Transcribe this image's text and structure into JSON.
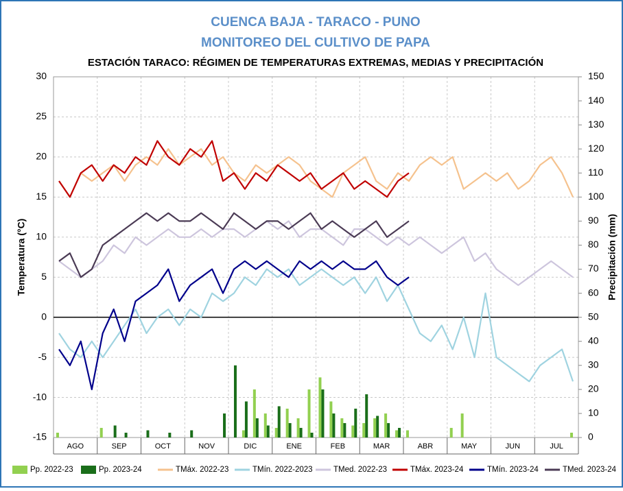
{
  "chart_data": {
    "type": "combo",
    "title": "CUENCA BAJA - TARACO - PUNO",
    "subtitle": "MONITOREO DEL CULTIVO DE PAPA",
    "heading": "ESTACIÓN TARACO: RÉGIMEN DE TEMPERATURAS EXTREMAS, MEDIAS Y PRECIPITACIÓN",
    "ylabel": "Temperatura (°C)",
    "y2label": "Precipitación (mm)",
    "categories": [
      null,
      "AGO",
      null,
      null,
      null,
      "SEP",
      null,
      null,
      null,
      "OCT",
      null,
      null,
      null,
      "NOV",
      null,
      null,
      null,
      "DIC",
      null,
      null,
      null,
      "ENE",
      null,
      null,
      null,
      "FEB",
      null,
      null,
      null,
      "MAR",
      null,
      null,
      null,
      "ABR",
      null,
      null,
      null,
      "MAY",
      null,
      null,
      null,
      "JUN",
      null,
      null,
      null,
      "JUL",
      null,
      null
    ],
    "ylim": [
      -15,
      30
    ],
    "yticks": [
      -15,
      -10,
      -5,
      0,
      5,
      10,
      15,
      20,
      25,
      30
    ],
    "y2lim": [
      0,
      150
    ],
    "y2ticks": [
      0,
      10,
      20,
      30,
      40,
      50,
      60,
      70,
      80,
      90,
      100,
      110,
      120,
      130,
      140,
      150
    ],
    "grid": true,
    "legend": "bottom",
    "series": [
      {
        "name": "Pp. 2022-23",
        "type": "bar",
        "axis": "y2",
        "color": "#92d050",
        "values": [
          2,
          0,
          0,
          0,
          4,
          0,
          0,
          0,
          0,
          0,
          0,
          0,
          0,
          0,
          0,
          0,
          0,
          3,
          20,
          10,
          4,
          12,
          8,
          20,
          25,
          15,
          8,
          5,
          6,
          8,
          10,
          3,
          3,
          0,
          0,
          0,
          4,
          10,
          0,
          0,
          0,
          0,
          0,
          0,
          0,
          0,
          0,
          2
        ]
      },
      {
        "name": "Pp. 2023-24",
        "type": "bar",
        "axis": "y2",
        "color": "#1a6e1a",
        "values": [
          0,
          0,
          0,
          0,
          0,
          5,
          2,
          0,
          3,
          0,
          2,
          0,
          3,
          0,
          0,
          10,
          30,
          15,
          8,
          5,
          13,
          6,
          4,
          2,
          20,
          10,
          6,
          12,
          18,
          9,
          6,
          4,
          0,
          0,
          0,
          0,
          0,
          0,
          0,
          0,
          0,
          0,
          0,
          0,
          0,
          0,
          0,
          0
        ]
      },
      {
        "name": "TMáx. 2022-23",
        "type": "line",
        "color": "#f5c28e",
        "values": [
          17,
          15,
          18,
          17,
          18,
          19,
          17,
          19,
          20,
          19,
          21,
          19,
          20,
          21,
          19,
          20,
          18,
          17,
          19,
          18,
          19,
          20,
          19,
          17,
          16,
          15,
          18,
          19,
          20,
          17,
          16,
          18,
          17,
          19,
          20,
          19,
          20,
          16,
          17,
          18,
          17,
          18,
          16,
          17,
          19,
          20,
          18,
          15
        ]
      },
      {
        "name": "TMín. 2022-2023",
        "type": "line",
        "color": "#9fd3e0",
        "values": [
          -2,
          -4,
          -5,
          -3,
          -5,
          -3,
          -1,
          1,
          -2,
          0,
          1,
          -1,
          1,
          0,
          3,
          2,
          3,
          5,
          4,
          6,
          5,
          6,
          4,
          5,
          6,
          5,
          4,
          5,
          3,
          5,
          2,
          4,
          1,
          -2,
          -3,
          -1,
          -4,
          0,
          -5,
          3,
          -5,
          -6,
          -7,
          -8,
          -6,
          -5,
          -4,
          -8
        ]
      },
      {
        "name": "TMed. 2022-23",
        "type": "line",
        "color": "#cdc5dd",
        "values": [
          7,
          6,
          5,
          6,
          7,
          9,
          8,
          10,
          9,
          10,
          11,
          10,
          10,
          11,
          10,
          11,
          11,
          10,
          11,
          12,
          11,
          12,
          10,
          11,
          11,
          10,
          9,
          11,
          11,
          10,
          9,
          10,
          9,
          10,
          9,
          8,
          9,
          10,
          7,
          8,
          6,
          5,
          4,
          5,
          6,
          7,
          6,
          5
        ]
      },
      {
        "name": "TMáx. 2023-24",
        "type": "line",
        "color": "#c00000",
        "values": [
          17,
          15,
          18,
          19,
          17,
          19,
          18,
          20,
          19,
          22,
          20,
          19,
          21,
          20,
          22,
          17,
          18,
          16,
          18,
          17,
          19,
          18,
          17,
          18,
          16,
          17,
          18,
          16,
          17,
          16,
          15,
          17,
          18,
          null,
          null,
          null,
          null,
          null,
          null,
          null,
          null,
          null,
          null,
          null,
          null,
          null,
          null,
          null
        ]
      },
      {
        "name": "TMín. 2023-24",
        "type": "line",
        "color": "#00008b",
        "values": [
          -4,
          -6,
          -3,
          -9,
          -2,
          1,
          -3,
          2,
          3,
          4,
          6,
          2,
          4,
          5,
          6,
          3,
          6,
          7,
          6,
          7,
          6,
          5,
          7,
          6,
          7,
          6,
          7,
          6,
          6,
          7,
          5,
          4,
          5,
          null,
          null,
          null,
          null,
          null,
          null,
          null,
          null,
          null,
          null,
          null,
          null,
          null,
          null,
          null
        ]
      },
      {
        "name": "TMed. 2023-24",
        "type": "line",
        "color": "#4b3b55",
        "values": [
          7,
          8,
          5,
          6,
          9,
          10,
          11,
          12,
          13,
          12,
          13,
          12,
          12,
          13,
          12,
          11,
          13,
          12,
          11,
          12,
          12,
          11,
          12,
          13,
          11,
          12,
          11,
          10,
          11,
          12,
          10,
          11,
          12,
          null,
          null,
          null,
          null,
          null,
          null,
          null,
          null,
          null,
          null,
          null,
          null,
          null,
          null,
          null
        ]
      }
    ]
  }
}
